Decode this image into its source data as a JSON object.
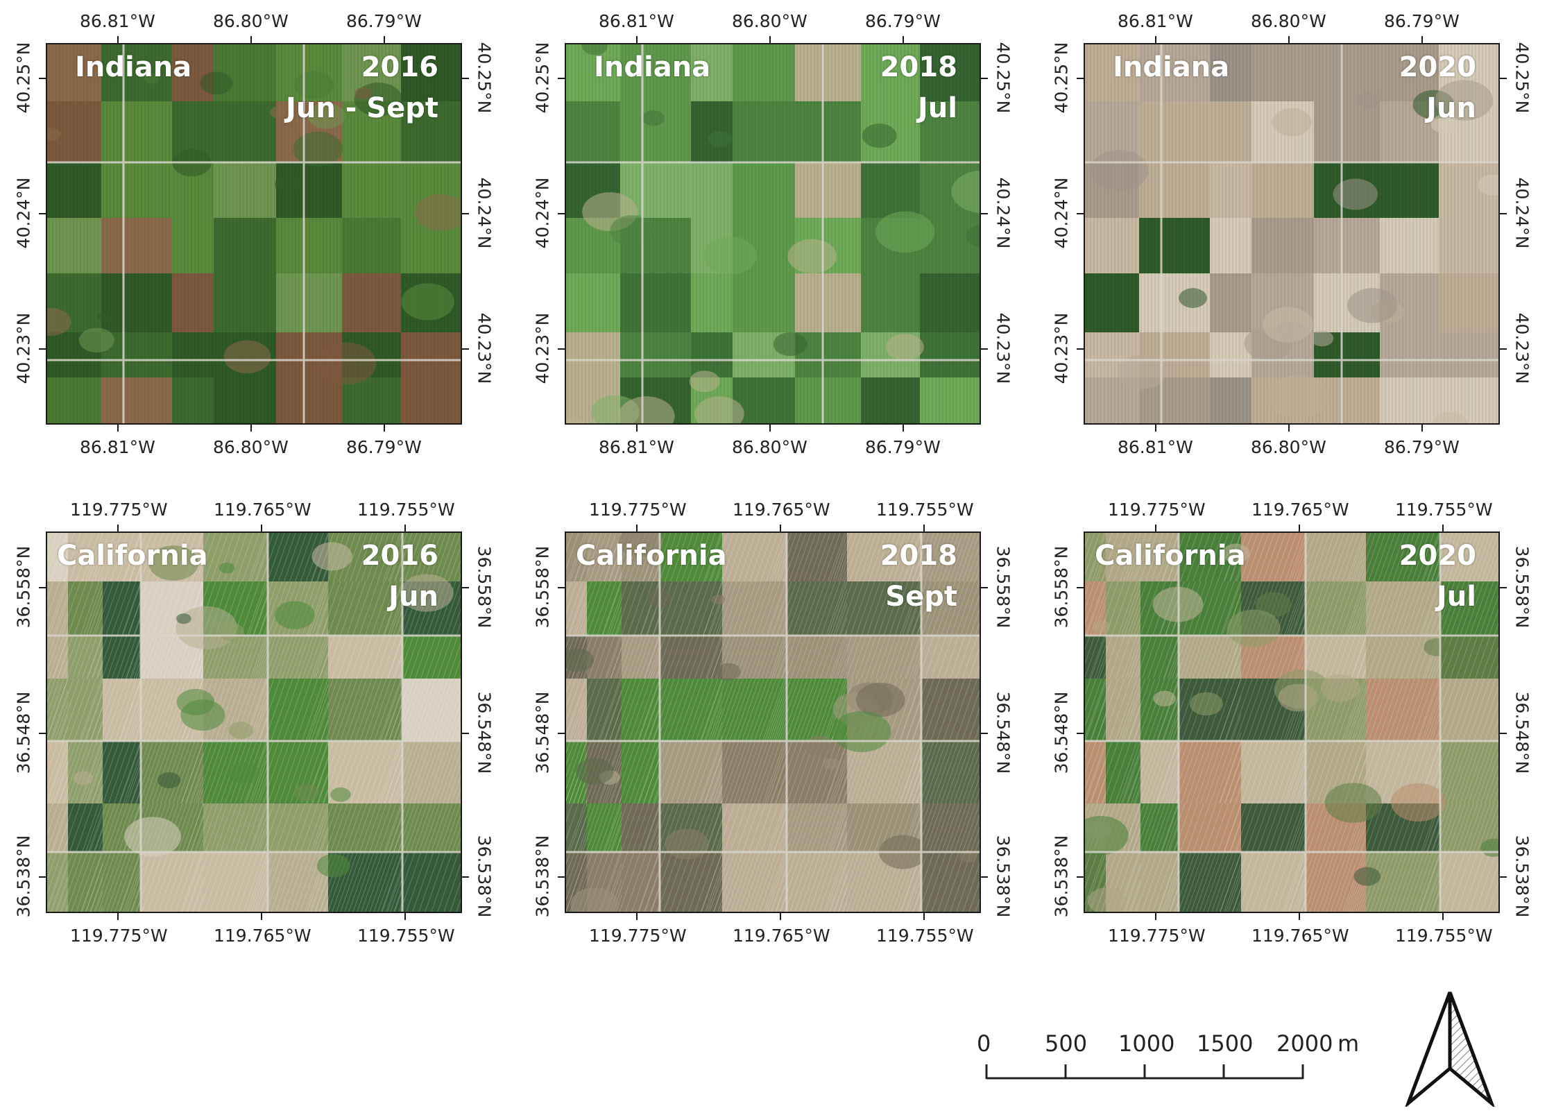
{
  "panels": [
    {
      "region": "Indiana",
      "year": "2016",
      "period": "Jun - Sept",
      "palette": "indiana2016",
      "lon_labels": [
        "86.81°W",
        "86.80°W",
        "86.79°W"
      ],
      "lat_labels": [
        "40.25°N",
        "40.24°N",
        "40.23°N"
      ]
    },
    {
      "region": "Indiana",
      "year": "2018",
      "period": "Jul",
      "palette": "indiana2018",
      "lon_labels": [
        "86.81°W",
        "86.80°W",
        "86.79°W"
      ],
      "lat_labels": [
        "40.25°N",
        "40.24°N",
        "40.23°N"
      ]
    },
    {
      "region": "Indiana",
      "year": "2020",
      "period": "Jun",
      "palette": "indiana2020",
      "lon_labels": [
        "86.81°W",
        "86.80°W",
        "86.79°W"
      ],
      "lat_labels": [
        "40.25°N",
        "40.24°N",
        "40.23°N"
      ]
    },
    {
      "region": "California",
      "year": "2016",
      "period": "Jun",
      "palette": "california2016",
      "lon_labels": [
        "119.775°W",
        "119.765°W",
        "119.755°W"
      ],
      "lat_labels": [
        "36.558°N",
        "36.548°N",
        "36.538°N"
      ]
    },
    {
      "region": "California",
      "year": "2018",
      "period": "Sept",
      "palette": "california2018",
      "lon_labels": [
        "119.775°W",
        "119.765°W",
        "119.755°W"
      ],
      "lat_labels": [
        "36.558°N",
        "36.548°N",
        "36.538°N"
      ]
    },
    {
      "region": "California",
      "year": "2020",
      "period": "Jul",
      "palette": "california2020",
      "lon_labels": [
        "119.775°W",
        "119.765°W",
        "119.755°W"
      ],
      "lat_labels": [
        "36.558°N",
        "36.548°N",
        "36.538°N"
      ]
    }
  ],
  "scale_bar": {
    "ticks": [
      "0",
      "500",
      "1000",
      "1500",
      "2000"
    ],
    "unit": "m"
  },
  "north_arrow": {
    "icon": "north-arrow-icon"
  },
  "colors": {
    "frame": "#1a1a1a",
    "indiana2016": [
      "#3d6b2f",
      "#4a7a34",
      "#5a8a3c",
      "#6f9650",
      "#7d5a3e",
      "#8a6a4a",
      "#2f5a26"
    ],
    "indiana2018": [
      "#3f7338",
      "#4d8440",
      "#5f9a4c",
      "#6eaa58",
      "#356430",
      "#7fb068",
      "#b9b08e"
    ],
    "indiana2020": [
      "#c8b9a3",
      "#bfae96",
      "#d6cbb8",
      "#a89c8c",
      "#b7a999",
      "#2f5a2a",
      "#9c9488"
    ],
    "california2016": [
      "#c9bca2",
      "#b8ae92",
      "#8f9e6a",
      "#6f8a4e",
      "#4f8a3a",
      "#355a3a",
      "#d8d0c0"
    ],
    "california2018": [
      "#bcae94",
      "#a69a80",
      "#8a7e66",
      "#6f6a56",
      "#9c9278",
      "#5a6a4a",
      "#4f8a3a"
    ],
    "california2020": [
      "#c2b79c",
      "#b0a886",
      "#8e9a68",
      "#5e7d45",
      "#4a7f3a",
      "#3d5a3a",
      "#b98f70"
    ]
  }
}
